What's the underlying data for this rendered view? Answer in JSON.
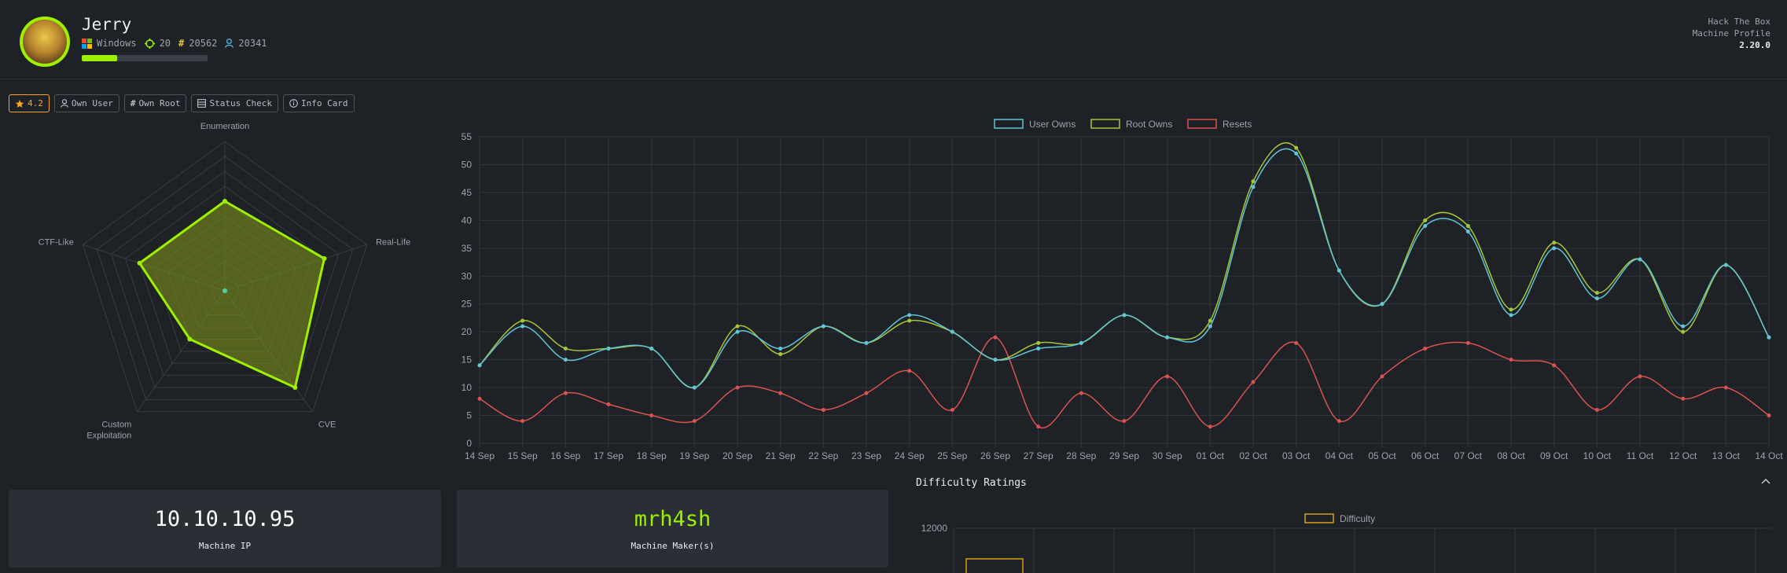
{
  "machine": {
    "name": "Jerry",
    "os": "Windows",
    "points": "20",
    "root_owns": "20562",
    "user_owns": "20341",
    "progress": 0.28
  },
  "brand": {
    "line1": "Hack The Box",
    "line2": "Machine Profile",
    "version": "2.20.0"
  },
  "toolbar": {
    "rating": "4.2",
    "own_user": "Own User",
    "own_root": "Own Root",
    "status_check": "Status Check",
    "info_card": "Info Card"
  },
  "radar": {
    "axes": [
      "Enumeration",
      "Real-Life",
      "CVE",
      "Custom\nExploitation",
      "CTF-Like"
    ],
    "values": [
      6,
      7,
      8,
      4,
      6
    ],
    "max": 10,
    "colors": {
      "line": "#9fef00",
      "fill": "#7a8f1a"
    }
  },
  "chart_data": [
    {
      "type": "line",
      "x": [
        "14 Sep",
        "15 Sep",
        "16 Sep",
        "17 Sep",
        "18 Sep",
        "19 Sep",
        "20 Sep",
        "21 Sep",
        "22 Sep",
        "23 Sep",
        "24 Sep",
        "25 Sep",
        "26 Sep",
        "27 Sep",
        "28 Sep",
        "29 Sep",
        "30 Sep",
        "01 Oct",
        "02 Oct",
        "03 Oct",
        "04 Oct",
        "05 Oct",
        "06 Oct",
        "07 Oct",
        "08 Oct",
        "09 Oct",
        "10 Oct",
        "11 Oct",
        "12 Oct",
        "13 Oct",
        "14 Oct"
      ],
      "series": [
        {
          "name": "User Owns",
          "color": "#62c4d4",
          "values": [
            14,
            21,
            15,
            17,
            17,
            10,
            20,
            17,
            21,
            18,
            23,
            20,
            15,
            17,
            18,
            23,
            19,
            21,
            46,
            52,
            31,
            25,
            39,
            38,
            23,
            35,
            26,
            33,
            21,
            32,
            19
          ]
        },
        {
          "name": "Root Owns",
          "color": "#a4c639",
          "values": [
            14,
            22,
            17,
            17,
            17,
            10,
            21,
            16,
            21,
            18,
            22,
            20,
            15,
            18,
            18,
            23,
            19,
            22,
            47,
            53,
            31,
            25,
            40,
            39,
            24,
            36,
            27,
            33,
            20,
            32,
            19
          ]
        },
        {
          "name": "Resets",
          "color": "#d9534f",
          "values": [
            8,
            4,
            9,
            7,
            5,
            4,
            10,
            9,
            6,
            9,
            13,
            6,
            19,
            3,
            9,
            4,
            12,
            3,
            11,
            18,
            4,
            12,
            17,
            18,
            15,
            14,
            6,
            12,
            8,
            10,
            5
          ]
        }
      ],
      "ylim": [
        0,
        55
      ],
      "yticks": [
        0,
        5,
        10,
        15,
        20,
        25,
        30,
        35,
        40,
        45,
        50,
        55
      ],
      "grid": true,
      "legend": "top-center"
    },
    {
      "type": "bar",
      "series": [
        {
          "name": "Difficulty",
          "color": "#d4a017"
        }
      ],
      "yticks": [
        12000
      ],
      "legend": "top-center"
    }
  ],
  "cards": {
    "ip": {
      "value": "10.10.10.95",
      "label": "Machine IP"
    },
    "maker": {
      "value": "mrh4sh",
      "label": "Machine Maker(s)"
    }
  },
  "difficulty": {
    "title": "Difficulty Ratings"
  }
}
